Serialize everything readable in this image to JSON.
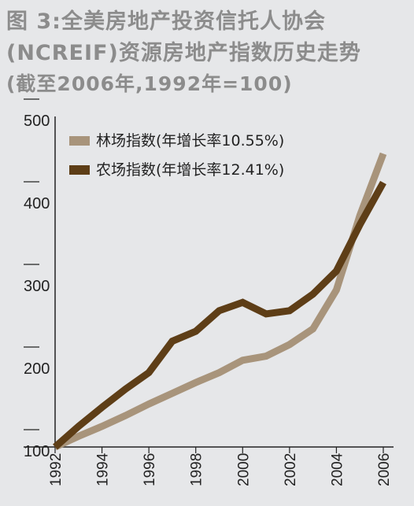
{
  "title": {
    "line1": "图 3:全美房地产投资信托人协会",
    "line2": "(NCREIF)资源房地产指数历史走势",
    "line3": "(截至2006年,1992年=100)"
  },
  "colors": {
    "background": "#e6e7e9",
    "title": "#8c8c8c",
    "forest": "#a8947b",
    "farm": "#5e3e17"
  },
  "chart_data": {
    "type": "line",
    "x": [
      1992,
      1993,
      1994,
      1995,
      1996,
      1997,
      1998,
      1999,
      2000,
      2001,
      2002,
      2003,
      2004,
      2005,
      2006
    ],
    "x_tick_labels": [
      "1992",
      "1994",
      "1996",
      "1998",
      "2000",
      "2002",
      "2004",
      "2006"
    ],
    "y_tick_labels": [
      "500",
      "400",
      "300",
      "200",
      "100"
    ],
    "ylim": [
      100,
      500
    ],
    "xlim": [
      1992,
      2006
    ],
    "grid": false,
    "legend_position": "top-left",
    "series": [
      {
        "name": "林场指数(年增长率10.55%)",
        "color": "#a8947b",
        "values": [
          100,
          113,
          125,
          138,
          152,
          165,
          178,
          190,
          205,
          210,
          224,
          243,
          290,
          380,
          455
        ]
      },
      {
        "name": "农场指数(年增长率12.41%)",
        "color": "#5e3e17",
        "values": [
          100,
          125,
          148,
          170,
          190,
          228,
          240,
          265,
          275,
          261,
          265,
          285,
          313,
          369,
          420
        ]
      }
    ]
  }
}
